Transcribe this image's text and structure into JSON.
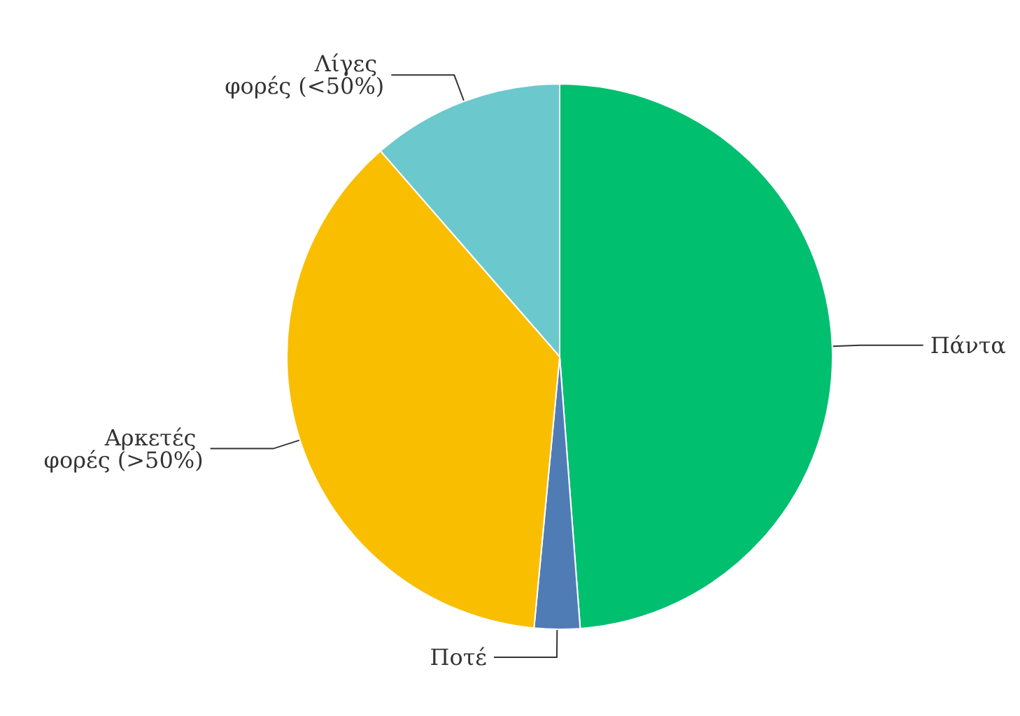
{
  "chart_data": {
    "type": "pie",
    "categories": [
      "Πάντα",
      "Ποτέ",
      "Αρκετές φορές (>50%)",
      "Λίγες φορές (<50%)"
    ],
    "values": [
      48.8,
      2.7,
      37.1,
      11.4
    ],
    "colors": [
      "#00bf6f",
      "#507cb6",
      "#f9be00",
      "#6bc8cd"
    ],
    "legend": false
  }
}
